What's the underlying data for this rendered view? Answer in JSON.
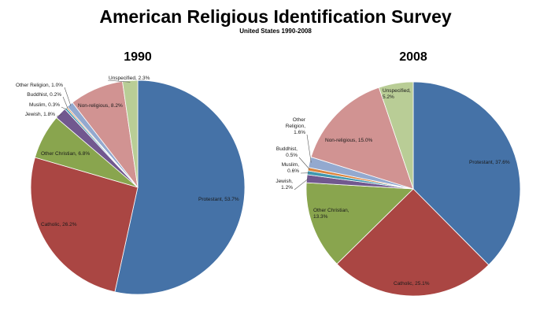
{
  "title": "American Religious Identification Survey",
  "subtitle": "United States 1990-2008",
  "colors": {
    "Protestant": "#4572A7",
    "Catholic": "#AA4643",
    "Other Christian": "#89A54E",
    "Jewish": "#71588F",
    "Muslim": "#4198AF",
    "Buddhist": "#DB843D",
    "Other Religion": "#93A9CF",
    "Non-religious": "#D19392",
    "Unspecified": "#B9CD96"
  },
  "chart_data": [
    {
      "type": "pie",
      "title": "1990",
      "categories": [
        "Protestant",
        "Catholic",
        "Other Christian",
        "Jewish",
        "Muslim",
        "Buddhist",
        "Other Religion",
        "Non-religious",
        "Unspecified"
      ],
      "values": [
        53.7,
        26.2,
        6.8,
        1.8,
        0.3,
        0.2,
        1.0,
        8.2,
        2.3
      ],
      "labels": [
        "Protestant, 53.7%",
        "Catholic, 26.2%",
        "Other Christian, 6.8%",
        "Jewish, 1.8%",
        "Muslim, 0.3%",
        "Buddhist, 0.2%",
        "Other Religion, 1.0%",
        "Non-religious, 8.2%",
        "Unspecified, 2.3%"
      ]
    },
    {
      "type": "pie",
      "title": "2008",
      "categories": [
        "Protestant",
        "Catholic",
        "Other Christian",
        "Jewish",
        "Muslim",
        "Buddhist",
        "Other Religion",
        "Non-religious",
        "Unspecified"
      ],
      "values": [
        37.6,
        25.1,
        13.3,
        1.2,
        0.6,
        0.5,
        1.6,
        15.0,
        5.2
      ],
      "labels": [
        "Protestant, 37.6%",
        "Catholic, 25.1%",
        "Other Christian, 13.3%",
        "Jewish, 1.2%",
        "Muslim, 0.6%",
        "Buddhist, 0.5%",
        "Other Religion, 1.6%",
        "Non-religious, 15.0%",
        "Unspecified, 5.2%"
      ]
    }
  ]
}
